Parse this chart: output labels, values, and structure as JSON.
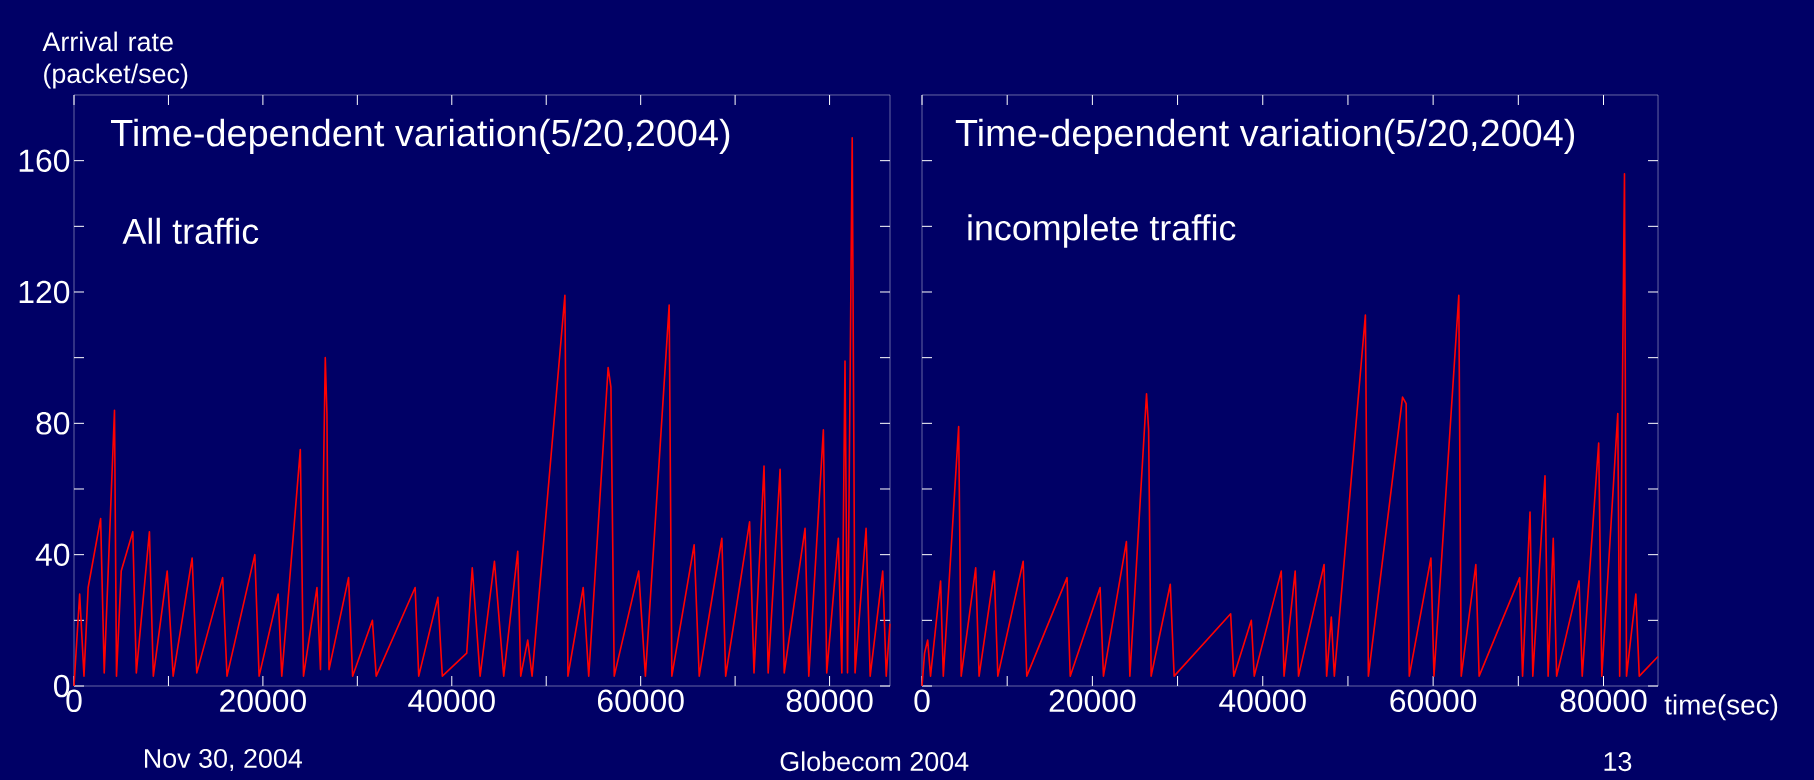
{
  "chart_data": [
    {
      "type": "line",
      "title": "Time-dependent variation(5/20,2004)",
      "subtitle": "All traffic",
      "ylabel": "Arrival rate (packet/sec)",
      "xlim": [
        0,
        86400
      ],
      "ylim": [
        0,
        180
      ],
      "xticks": [
        0,
        {
          "value": 10000,
          "label": null
        },
        20000,
        {
          "value": 30000,
          "label": null
        },
        40000,
        {
          "value": 50000,
          "label": null
        },
        60000,
        {
          "value": 70000,
          "label": null
        },
        80000
      ],
      "yticks": [
        0,
        {
          "value": 20,
          "label": null
        },
        40,
        {
          "value": 60,
          "label": null
        },
        80,
        {
          "value": 100,
          "label": null
        },
        120,
        {
          "value": 140,
          "label": null
        },
        160
      ],
      "annotations": [
        "Nov 30, 2004",
        "Globecom 2004"
      ],
      "series": [
        {
          "color": "#ff0000",
          "x": [
            0,
            600,
            1057,
            1500,
            2819,
            3200,
            4287,
            4500,
            5000,
            6225,
            6600,
            7987,
            8400,
            9867,
            10500,
            12509,
            13000,
            15740,
            16200,
            19146,
            19600,
            21612,
            22000,
            23962,
            24300,
            25724,
            26100,
            26605,
            26781,
            27000,
            29071,
            29500,
            31597,
            32000,
            36119,
            36500,
            38527,
            39000,
            41581,
            42168,
            43000,
            44517,
            45500,
            46984,
            47300,
            48041,
            48500,
            51976,
            52300,
            53914,
            54500,
            56556,
            56850,
            57200,
            59787,
            60500,
            63017,
            63300,
            65660,
            66200,
            68596,
            69000,
            71533,
            72000,
            73060,
            73500,
            74763,
            75200,
            77406,
            77800,
            79344,
            79700,
            80930,
            81300,
            81635,
            81900,
            82398,
            82700,
            83867,
            84300,
            85628,
            86000,
            86391
          ],
          "values": [
            0,
            28,
            3,
            30,
            51,
            4,
            84,
            3,
            35,
            47,
            4,
            47,
            3,
            35,
            3,
            39,
            4,
            33,
            3,
            40,
            3,
            28,
            3,
            72,
            3,
            30,
            5,
            100,
            83,
            5,
            33,
            3,
            20,
            3,
            30,
            3,
            27,
            3,
            10,
            36,
            3,
            38,
            3,
            41,
            3,
            14,
            3,
            119,
            3,
            30,
            3,
            97,
            91,
            3,
            35,
            3,
            116,
            3,
            43,
            3,
            45,
            3,
            50,
            4,
            67,
            4,
            66,
            4,
            48,
            3,
            78,
            4,
            45,
            4,
            99,
            4,
            167,
            4,
            48,
            3,
            35,
            3,
            19
          ]
        }
      ]
    },
    {
      "type": "line",
      "title": "Time-dependent variation(5/20,2004)",
      "subtitle": "incomplete traffic",
      "xlabel": "time(sec)",
      "xlim": [
        0,
        86400
      ],
      "ylim": [
        0,
        180
      ],
      "tick_labels": "x",
      "xticks": [
        0,
        {
          "value": 10000,
          "label": null
        },
        20000,
        {
          "value": 30000,
          "label": null
        },
        40000,
        {
          "value": 50000,
          "label": null
        },
        60000,
        {
          "value": 70000,
          "label": null
        },
        80000
      ],
      "yticks": [
        0,
        {
          "value": 20,
          "label": null
        },
        40,
        {
          "value": 60,
          "label": null
        },
        80,
        {
          "value": 100,
          "label": null
        },
        120,
        {
          "value": 140,
          "label": null
        },
        160
      ],
      "annotations": [
        "13"
      ],
      "series": [
        {
          "color": "#ff0000",
          "x": [
            0,
            300,
            666,
            1000,
            2181,
            2500,
            4302,
            4600,
            6301,
            6700,
            8483,
            8900,
            11876,
            12300,
            17026,
            17400,
            20904,
            21300,
            23994,
            24400,
            26357,
            26600,
            26900,
            29144,
            29600,
            36233,
            36600,
            38657,
            39000,
            42171,
            42500,
            43807,
            44200,
            47200,
            47500,
            48048,
            48400,
            52047,
            52400,
            56409,
            56833,
            57200,
            59742,
            60100,
            63014,
            63300,
            65013,
            65400,
            70163,
            70500,
            71375,
            71700,
            73132,
            73500,
            74101,
            74500,
            77131,
            77500,
            79433,
            79800,
            81675,
            81900,
            82463,
            82700,
            83796,
            84200,
            86400
          ],
          "values": [
            0,
            10,
            14,
            3,
            32,
            3,
            79,
            3,
            36,
            3,
            35,
            3,
            38,
            3,
            33,
            3,
            30,
            3,
            44,
            3,
            89,
            78,
            3,
            31,
            3,
            22,
            3,
            20,
            3,
            35,
            3,
            35,
            3,
            37,
            3,
            21,
            3,
            113,
            3,
            88,
            86,
            3,
            39,
            3,
            119,
            3,
            37,
            3,
            33,
            3,
            53,
            3,
            64,
            3,
            45,
            3,
            32,
            3,
            74,
            3,
            83,
            3,
            156,
            3,
            28,
            3,
            9
          ]
        }
      ]
    }
  ]
}
